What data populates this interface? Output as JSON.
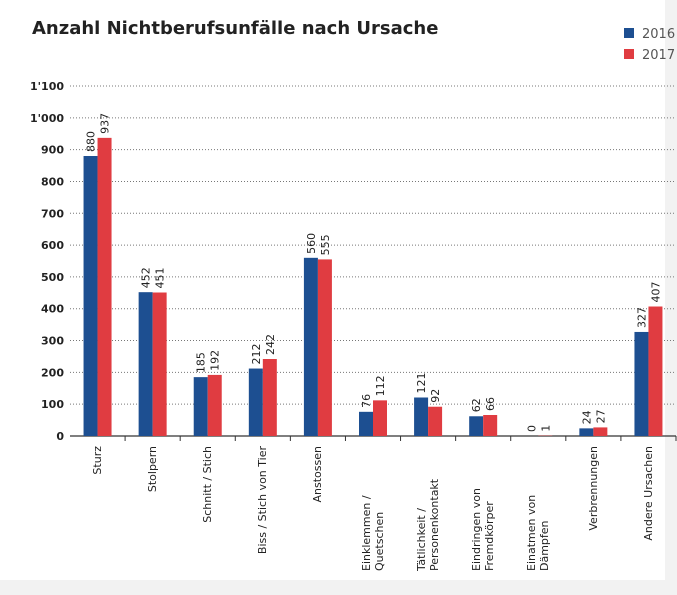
{
  "chart_data": {
    "type": "bar",
    "title": "Anzahl Nichtberufsunfälle nach Ursache",
    "categories": [
      "Sturz",
      "Stolpern",
      "Schnitt / Stich",
      "Biss / Stich von Tier",
      "Anstossen",
      "Einklemmen / Quetschen",
      "Tätlichkeit / Personenkontakt",
      "Eindringen von Fremdkörper",
      "Einatmen von Dämpfen",
      "Verbrennungen",
      "Andere Ursachen"
    ],
    "series": [
      {
        "name": "2016",
        "color": "#1d4f91",
        "values": [
          880,
          452,
          185,
          212,
          560,
          76,
          121,
          62,
          0,
          24,
          327
        ]
      },
      {
        "name": "2017",
        "color": "#e03c41",
        "values": [
          937,
          451,
          192,
          242,
          555,
          112,
          92,
          66,
          1,
          27,
          407
        ]
      }
    ],
    "ylim": [
      0,
      1100
    ],
    "yticks": [
      0,
      100,
      200,
      300,
      400,
      500,
      600,
      700,
      800,
      900,
      {
        "value": 1000,
        "label": "1'000"
      },
      {
        "value": 1100,
        "label": "1'100"
      }
    ],
    "grid": true,
    "legend": "top-right"
  }
}
